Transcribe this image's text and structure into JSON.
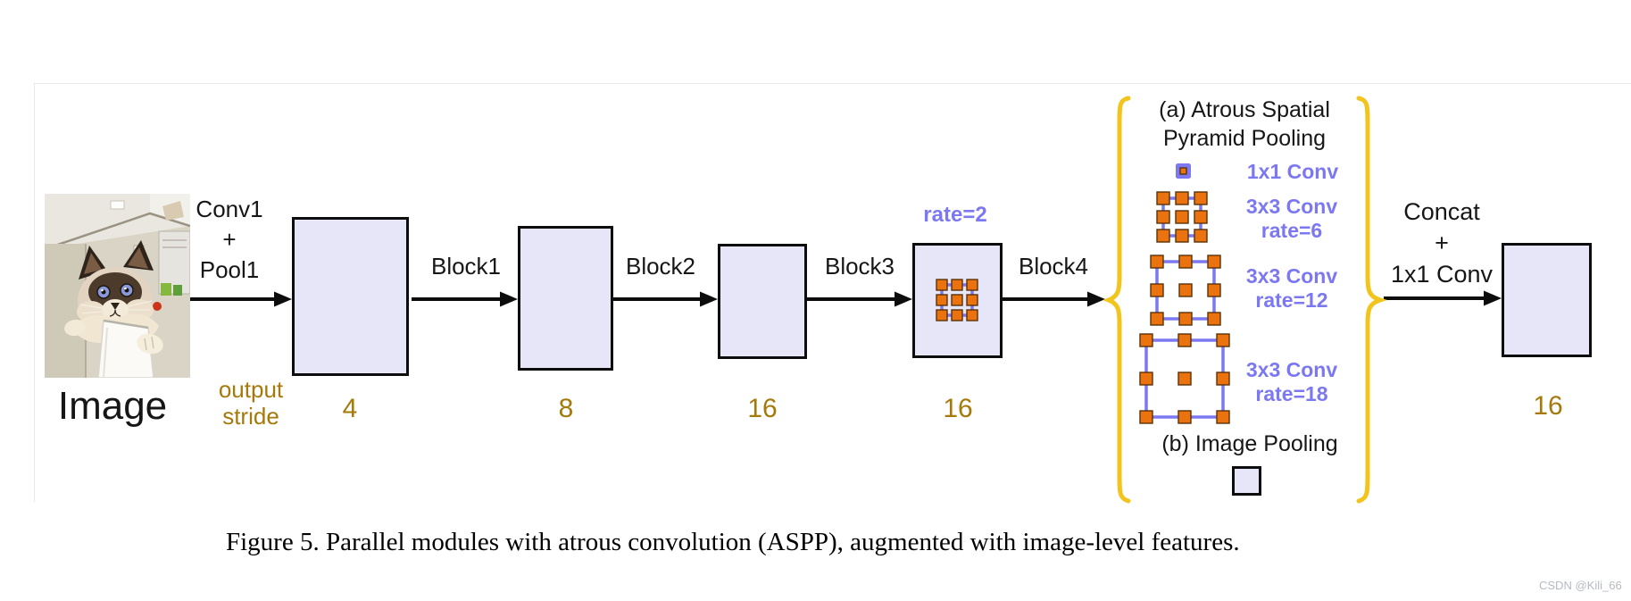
{
  "pipeline": {
    "image_label": "Image",
    "stem_line1": "Conv1",
    "stem_line2": "+",
    "stem_line3": "Pool1",
    "output_stride_line1": "output",
    "output_stride_line2": "stride",
    "block1_label": "Block1",
    "block2_label": "Block2",
    "block3_label": "Block3",
    "block4_label": "Block4",
    "rate_label": "rate=2",
    "stride_after_stem": "4",
    "stride_after_block1": "8",
    "stride_after_block2": "16",
    "stride_after_block3": "16",
    "stride_output": "16",
    "concat_line1": "Concat",
    "concat_line2": "+",
    "concat_line3": "1x1 Conv"
  },
  "aspp": {
    "title_line1": "(a) Atrous Spatial",
    "title_line2": "Pyramid Pooling",
    "branch_1x1_label": "1x1 Conv",
    "branch_r6_line1": "3x3 Conv",
    "branch_r6_line2": "rate=6",
    "branch_r12_line1": "3x3 Conv",
    "branch_r12_line2": "rate=12",
    "branch_r18_line1": "3x3 Conv",
    "branch_r18_line2": "rate=18",
    "image_pooling_label": "(b) Image Pooling"
  },
  "caption": "Figure 5. Parallel modules with atrous convolution (ASPP), augmented with image-level features.",
  "watermark": "CSDN @Kili_66",
  "colors": {
    "feature_map_fill": "#e6e6f8",
    "accent_purple": "#7b78f2",
    "atrous_orange": "#ea720f",
    "stride_gold": "#a5790a",
    "brace_yellow": "#f2c41e"
  }
}
